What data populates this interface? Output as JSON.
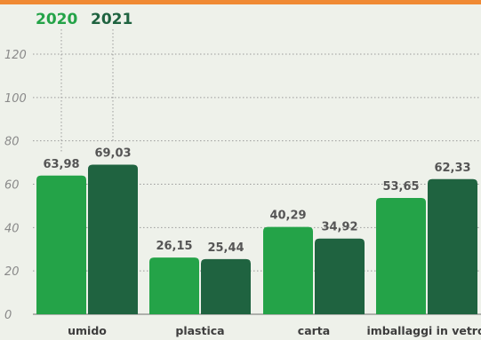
{
  "colors": {
    "top_bar": "#f08a34",
    "background": "#eef1ea",
    "series_2020": "#24a348",
    "series_2021": "#1f6340",
    "gridline": "#9a9a9a"
  },
  "chart_data": {
    "type": "bar",
    "categories": [
      "umido",
      "plastica",
      "carta",
      "imballaggi in vetro"
    ],
    "series": [
      {
        "name": "2020",
        "values": [
          63.98,
          26.15,
          40.29,
          53.65
        ],
        "labels": [
          "63,98",
          "26,15",
          "40,29",
          "53,65"
        ]
      },
      {
        "name": "2021",
        "values": [
          69.03,
          25.44,
          34.92,
          62.33
        ],
        "labels": [
          "69,03",
          "25,44",
          "34,92",
          "62,33"
        ]
      }
    ],
    "y_ticks": [
      "0",
      "20",
      "40",
      "60",
      "80",
      "100",
      "120"
    ],
    "ylim": [
      0,
      120
    ],
    "grid": true,
    "legend_position": "top-left",
    "title": "",
    "xlabel": "",
    "ylabel": ""
  }
}
